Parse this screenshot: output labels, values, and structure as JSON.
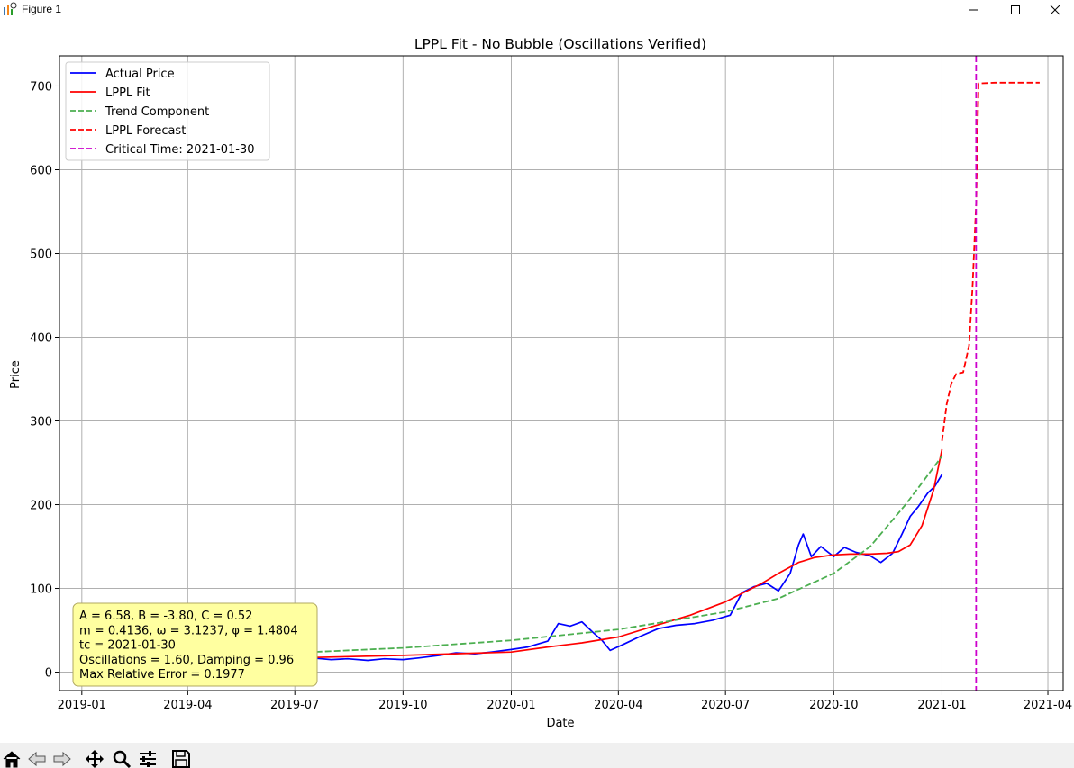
{
  "window": {
    "title": "Figure 1",
    "buttons": [
      "minimize",
      "maximize",
      "close"
    ]
  },
  "toolbar": {
    "icons": [
      "home-icon",
      "back-arrow-icon",
      "forward-arrow-icon",
      "pan-icon",
      "zoom-icon",
      "configure-subplots-icon",
      "save-icon"
    ]
  },
  "chart_data": {
    "type": "line",
    "title": "LPPL Fit - No Bubble (Oscillations Verified)",
    "xlabel": "Date",
    "ylabel": "Price",
    "xlim": [
      "2018-12-13",
      "2021-04-14"
    ],
    "ylim": [
      -22,
      736
    ],
    "x_ticks": [
      "2019-01",
      "2019-04",
      "2019-07",
      "2019-10",
      "2020-01",
      "2020-04",
      "2020-07",
      "2020-10",
      "2021-01",
      "2021-04"
    ],
    "y_ticks": [
      0,
      100,
      200,
      300,
      400,
      500,
      600,
      700
    ],
    "grid": true,
    "legend_position": "top-left",
    "series": [
      {
        "name": "Actual Price",
        "style": "solid",
        "color": "#0000ff",
        "points": [
          [
            "2019-01-01",
            18
          ],
          [
            "2019-01-15",
            21
          ],
          [
            "2019-02-01",
            19
          ],
          [
            "2019-02-15",
            22
          ],
          [
            "2019-03-01",
            18
          ],
          [
            "2019-03-15",
            20
          ],
          [
            "2019-04-01",
            17
          ],
          [
            "2019-04-15",
            20
          ],
          [
            "2019-05-01",
            17
          ],
          [
            "2019-05-15",
            19
          ],
          [
            "2019-06-01",
            14
          ],
          [
            "2019-06-15",
            16
          ],
          [
            "2019-07-01",
            15
          ],
          [
            "2019-07-15",
            17
          ],
          [
            "2019-08-01",
            15
          ],
          [
            "2019-08-15",
            16
          ],
          [
            "2019-09-01",
            14
          ],
          [
            "2019-09-15",
            16
          ],
          [
            "2019-10-01",
            15
          ],
          [
            "2019-10-15",
            17
          ],
          [
            "2019-11-01",
            20
          ],
          [
            "2019-11-15",
            23
          ],
          [
            "2019-12-01",
            22
          ],
          [
            "2019-12-15",
            24
          ],
          [
            "2020-01-01",
            27
          ],
          [
            "2020-01-15",
            30
          ],
          [
            "2020-02-01",
            37
          ],
          [
            "2020-02-10",
            58
          ],
          [
            "2020-02-20",
            55
          ],
          [
            "2020-03-01",
            60
          ],
          [
            "2020-03-10",
            48
          ],
          [
            "2020-03-18",
            38
          ],
          [
            "2020-03-25",
            26
          ],
          [
            "2020-04-05",
            33
          ],
          [
            "2020-04-20",
            43
          ],
          [
            "2020-05-05",
            52
          ],
          [
            "2020-05-20",
            56
          ],
          [
            "2020-06-05",
            58
          ],
          [
            "2020-06-20",
            62
          ],
          [
            "2020-07-05",
            68
          ],
          [
            "2020-07-15",
            95
          ],
          [
            "2020-07-25",
            102
          ],
          [
            "2020-08-05",
            106
          ],
          [
            "2020-08-15",
            97
          ],
          [
            "2020-08-25",
            118
          ],
          [
            "2020-09-01",
            152
          ],
          [
            "2020-09-05",
            165
          ],
          [
            "2020-09-12",
            138
          ],
          [
            "2020-09-20",
            150
          ],
          [
            "2020-10-01",
            138
          ],
          [
            "2020-10-10",
            149
          ],
          [
            "2020-10-20",
            143
          ],
          [
            "2020-11-01",
            139
          ],
          [
            "2020-11-10",
            131
          ],
          [
            "2020-11-20",
            142
          ],
          [
            "2020-11-28",
            165
          ],
          [
            "2020-12-05",
            186
          ],
          [
            "2020-12-12",
            198
          ],
          [
            "2020-12-20",
            214
          ],
          [
            "2020-12-26",
            222
          ],
          [
            "2021-01-01",
            236
          ]
        ]
      },
      {
        "name": "LPPL Fit",
        "style": "solid",
        "color": "#ff0000",
        "points": [
          [
            "2019-01-01",
            16
          ],
          [
            "2019-04-01",
            15
          ],
          [
            "2019-07-01",
            17
          ],
          [
            "2019-10-01",
            20
          ],
          [
            "2020-01-01",
            24
          ],
          [
            "2020-02-01",
            30
          ],
          [
            "2020-03-01",
            35
          ],
          [
            "2020-04-01",
            42
          ],
          [
            "2020-05-01",
            55
          ],
          [
            "2020-06-01",
            68
          ],
          [
            "2020-07-01",
            84
          ],
          [
            "2020-08-01",
            106
          ],
          [
            "2020-08-15",
            118
          ],
          [
            "2020-09-01",
            131
          ],
          [
            "2020-09-15",
            137
          ],
          [
            "2020-10-01",
            140
          ],
          [
            "2020-10-15",
            141
          ],
          [
            "2020-11-01",
            141
          ],
          [
            "2020-11-15",
            142
          ],
          [
            "2020-11-25",
            144
          ],
          [
            "2020-12-05",
            152
          ],
          [
            "2020-12-15",
            175
          ],
          [
            "2020-12-25",
            218
          ],
          [
            "2021-01-01",
            266
          ]
        ]
      },
      {
        "name": "Trend Component",
        "style": "dashed",
        "color": "#4caf50",
        "points": [
          [
            "2019-01-01",
            17
          ],
          [
            "2019-04-01",
            19
          ],
          [
            "2019-07-01",
            23
          ],
          [
            "2019-10-01",
            29
          ],
          [
            "2020-01-01",
            38
          ],
          [
            "2020-04-01",
            51
          ],
          [
            "2020-07-01",
            72
          ],
          [
            "2020-08-15",
            88
          ],
          [
            "2020-10-01",
            118
          ],
          [
            "2020-11-01",
            150
          ],
          [
            "2020-12-01",
            200
          ],
          [
            "2020-12-15",
            226
          ],
          [
            "2021-01-01",
            258
          ]
        ]
      },
      {
        "name": "LPPL Forecast",
        "style": "dashed",
        "color": "#ff0000",
        "points": [
          [
            "2021-01-01",
            276
          ],
          [
            "2021-01-05",
            320
          ],
          [
            "2021-01-09",
            345
          ],
          [
            "2021-01-13",
            356
          ],
          [
            "2021-01-19",
            358
          ],
          [
            "2021-01-24",
            390
          ],
          [
            "2021-01-27",
            460
          ],
          [
            "2021-01-30",
            560
          ],
          [
            "2021-02-01",
            703
          ],
          [
            "2021-02-15",
            704
          ],
          [
            "2021-03-01",
            704
          ],
          [
            "2021-03-25",
            704
          ]
        ]
      }
    ],
    "critical_line": {
      "name": "Critical Time: 2021-01-30",
      "date": "2021-01-30",
      "style": "dashed",
      "color": "#cc00cc"
    },
    "annotation_lines": [
      "A = 6.58, B = -3.80, C = 0.52",
      "m = 0.4136, ω = 3.1237, φ = 1.4804",
      "tc = 2021-01-30",
      "Oscillations = 1.60, Damping = 0.96",
      "Max Relative Error = 0.1977"
    ],
    "annotation_color": "#ffffa0"
  }
}
